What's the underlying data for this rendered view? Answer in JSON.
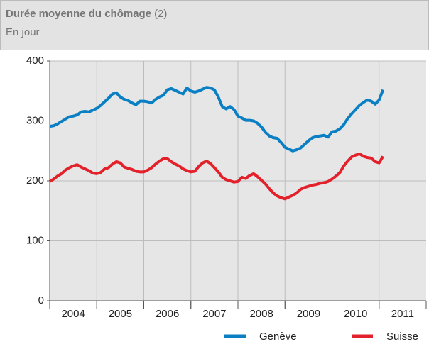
{
  "chart_data": {
    "type": "line",
    "title": "Durée moyenne du chômage",
    "title_note": "(2)",
    "subtitle": "En jour",
    "categories": [
      "2004",
      null,
      null,
      null,
      null,
      null,
      null,
      null,
      null,
      null,
      null,
      null,
      "2005",
      null,
      null,
      null,
      null,
      null,
      null,
      null,
      null,
      null,
      null,
      null,
      "2006",
      null,
      null,
      null,
      null,
      null,
      null,
      null,
      null,
      null,
      null,
      null,
      "2007",
      null,
      null,
      null,
      null,
      null,
      null,
      null,
      null,
      null,
      null,
      null,
      "2008",
      null,
      null,
      null,
      null,
      null,
      null,
      null,
      null,
      null,
      null,
      null,
      "2009",
      null,
      null,
      null,
      null,
      null,
      null,
      null,
      null,
      null,
      null,
      null,
      "2010",
      null,
      null,
      null,
      null,
      null,
      null,
      null,
      null,
      null,
      null,
      null,
      "2011",
      null
    ],
    "series": [
      {
        "name": "Genève",
        "color": "#0a7fc4",
        "values": [
          291,
          292,
          295,
          299,
          303,
          307,
          308,
          310,
          315,
          316,
          315,
          318,
          321,
          326,
          332,
          338,
          345,
          347,
          340,
          336,
          334,
          330,
          327,
          333,
          333,
          332,
          330,
          336,
          340,
          343,
          352,
          354,
          351,
          348,
          345,
          355,
          350,
          348,
          350,
          353,
          356,
          355,
          352,
          340,
          324,
          320,
          324,
          319,
          308,
          305,
          301,
          301,
          300,
          296,
          290,
          281,
          275,
          272,
          271,
          264,
          256,
          253,
          250,
          252,
          255,
          261,
          267,
          272,
          274,
          275,
          276,
          273,
          282,
          283,
          287,
          294,
          304,
          312,
          319,
          326,
          331,
          335,
          333,
          328,
          335,
          352
        ]
      },
      {
        "name": "Suisse",
        "color": "#e3212b",
        "values": [
          199,
          203,
          208,
          212,
          218,
          222,
          225,
          227,
          223,
          220,
          217,
          213,
          212,
          214,
          220,
          222,
          228,
          232,
          230,
          223,
          221,
          219,
          216,
          215,
          215,
          218,
          222,
          228,
          233,
          237,
          237,
          232,
          228,
          225,
          220,
          217,
          215,
          216,
          224,
          230,
          233,
          229,
          222,
          215,
          206,
          202,
          200,
          198,
          199,
          206,
          204,
          209,
          212,
          207,
          201,
          195,
          187,
          180,
          175,
          172,
          170,
          173,
          176,
          180,
          186,
          189,
          191,
          193,
          194,
          196,
          197,
          199,
          203,
          208,
          214,
          225,
          233,
          240,
          243,
          245,
          241,
          239,
          238,
          232,
          230,
          241
        ]
      }
    ],
    "ylim": [
      0,
      400
    ],
    "yticks": [
      0,
      100,
      200,
      300,
      400
    ],
    "grid": true
  }
}
